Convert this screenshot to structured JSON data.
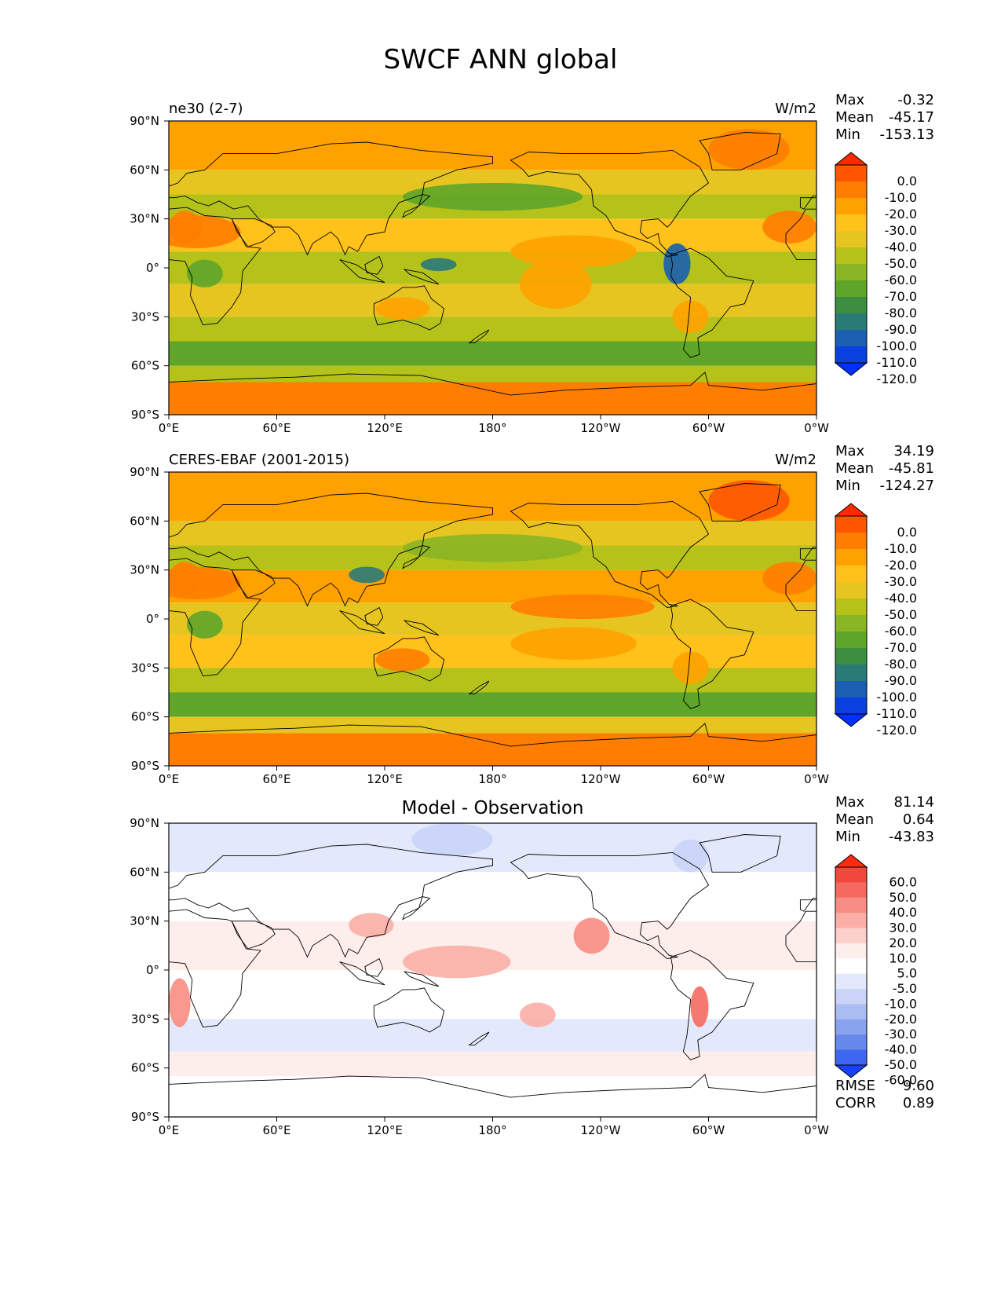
{
  "title": "SWCF ANN global",
  "x_ticks": [
    "0°E",
    "60°E",
    "120°E",
    "180°",
    "120°W",
    "60°W",
    "0°W"
  ],
  "y_ticks": [
    "90°N",
    "60°N",
    "30°N",
    "0°",
    "30°S",
    "60°S",
    "90°S"
  ],
  "stat_labels": {
    "max": "Max",
    "mean": "Mean",
    "min": "Min",
    "rmse": "RMSE",
    "corr": "CORR"
  },
  "panels": [
    {
      "left_title": "ne30 (2-7)",
      "center_title": "",
      "units": "W/m2",
      "stats": {
        "max": "-0.32",
        "mean": "-45.17",
        "min": "-153.13"
      },
      "colorbar": {
        "levels": [
          "0.0",
          "-10.0",
          "-20.0",
          "-30.0",
          "-40.0",
          "-50.0",
          "-60.0",
          "-70.0",
          "-80.0",
          "-90.0",
          "-100.0",
          "-110.0",
          "-120.0"
        ],
        "colors": [
          "#ff2a00",
          "#ff5500",
          "#ff7d00",
          "#ffa200",
          "#ffc21a",
          "#e6c520",
          "#b5c21a",
          "#8ab525",
          "#5ea52a",
          "#3c8d3d",
          "#2a7a78",
          "#1a5fb0",
          "#0a3fe0",
          "#0030ff"
        ]
      }
    },
    {
      "left_title": "CERES-EBAF (2001-2015)",
      "center_title": "",
      "units": "W/m2",
      "stats": {
        "max": "34.19",
        "mean": "-45.81",
        "min": "-124.27"
      },
      "colorbar": {
        "levels": [
          "0.0",
          "-10.0",
          "-20.0",
          "-30.0",
          "-40.0",
          "-50.0",
          "-60.0",
          "-70.0",
          "-80.0",
          "-90.0",
          "-100.0",
          "-110.0",
          "-120.0"
        ],
        "colors": [
          "#ff2a00",
          "#ff5500",
          "#ff7d00",
          "#ffa200",
          "#ffc21a",
          "#e6c520",
          "#b5c21a",
          "#8ab525",
          "#5ea52a",
          "#3c8d3d",
          "#2a7a78",
          "#1a5fb0",
          "#0a3fe0",
          "#0030ff"
        ]
      }
    },
    {
      "left_title": "",
      "center_title": "Model - Observation",
      "units": "",
      "stats": {
        "max": "81.14",
        "mean": "0.64",
        "min": "-43.83",
        "rmse": "9.60",
        "corr": "0.89"
      },
      "colorbar": {
        "levels": [
          "60.0",
          "50.0",
          "40.0",
          "30.0",
          "20.0",
          "10.0",
          "5.0",
          "-5.0",
          "-10.0",
          "-20.0",
          "-30.0",
          "-40.0",
          "-50.0",
          "-60.0"
        ],
        "colors": [
          "#ff2a10",
          "#f0483a",
          "#f46a5e",
          "#f78d83",
          "#faaea6",
          "#fcd0ca",
          "#fdeeeb",
          "#ffffff",
          "#e3e9fb",
          "#c9d4f7",
          "#aabdf3",
          "#8aa3ef",
          "#6688ea",
          "#3f66f0",
          "#1a40ff"
        ]
      }
    }
  ],
  "chart_data": [
    {
      "type": "heatmap",
      "title": "ne30 (2-7)",
      "units": "W/m2",
      "x_range": [
        "0°E",
        "0°W"
      ],
      "y_range": [
        "90°S",
        "90°N"
      ],
      "levels": [
        0,
        -10,
        -20,
        -30,
        -40,
        -50,
        -60,
        -70,
        -80,
        -90,
        -100,
        -110,
        -120
      ],
      "zonal_mean_bands": [
        {
          "lat": [
            60,
            90
          ],
          "value": -25
        },
        {
          "lat": [
            45,
            60
          ],
          "value": -45
        },
        {
          "lat": [
            30,
            45
          ],
          "value": -60
        },
        {
          "lat": [
            10,
            30
          ],
          "value": -35
        },
        {
          "lat": [
            -10,
            10
          ],
          "value": -55
        },
        {
          "lat": [
            -30,
            -10
          ],
          "value": -45
        },
        {
          "lat": [
            -45,
            -30
          ],
          "value": -60
        },
        {
          "lat": [
            -60,
            -45
          ],
          "value": -80
        },
        {
          "lat": [
            -70,
            -60
          ],
          "value": -55
        },
        {
          "lat": [
            -90,
            -70
          ],
          "value": -15
        }
      ],
      "stats": {
        "max": -0.32,
        "mean": -45.17,
        "min": -153.13
      }
    },
    {
      "type": "heatmap",
      "title": "CERES-EBAF (2001-2015)",
      "units": "W/m2",
      "x_range": [
        "0°E",
        "0°W"
      ],
      "y_range": [
        "90°S",
        "90°N"
      ],
      "levels": [
        0,
        -10,
        -20,
        -30,
        -40,
        -50,
        -60,
        -70,
        -80,
        -90,
        -100,
        -110,
        -120
      ],
      "zonal_mean_bands": [
        {
          "lat": [
            60,
            90
          ],
          "value": -25
        },
        {
          "lat": [
            45,
            60
          ],
          "value": -50
        },
        {
          "lat": [
            30,
            45
          ],
          "value": -60
        },
        {
          "lat": [
            10,
            30
          ],
          "value": -30
        },
        {
          "lat": [
            -10,
            10
          ],
          "value": -50
        },
        {
          "lat": [
            -30,
            -10
          ],
          "value": -40
        },
        {
          "lat": [
            -45,
            -30
          ],
          "value": -60
        },
        {
          "lat": [
            -60,
            -45
          ],
          "value": -75
        },
        {
          "lat": [
            -70,
            -60
          ],
          "value": -50
        },
        {
          "lat": [
            -90,
            -70
          ],
          "value": -15
        }
      ],
      "stats": {
        "max": 34.19,
        "mean": -45.81,
        "min": -124.27
      }
    },
    {
      "type": "heatmap",
      "title": "Model - Observation",
      "x_range": [
        "0°E",
        "0°W"
      ],
      "y_range": [
        "90°S",
        "90°N"
      ],
      "levels": [
        60,
        50,
        40,
        30,
        20,
        10,
        5,
        -5,
        -10,
        -20,
        -30,
        -40,
        -50,
        -60
      ],
      "zonal_mean_bands": [
        {
          "lat": [
            60,
            90
          ],
          "value": -8
        },
        {
          "lat": [
            30,
            60
          ],
          "value": 0
        },
        {
          "lat": [
            0,
            30
          ],
          "value": 6
        },
        {
          "lat": [
            -30,
            0
          ],
          "value": 2
        },
        {
          "lat": [
            -50,
            -30
          ],
          "value": -8
        },
        {
          "lat": [
            -65,
            -50
          ],
          "value": 5
        },
        {
          "lat": [
            -90,
            -65
          ],
          "value": 0
        }
      ],
      "stats": {
        "max": 81.14,
        "mean": 0.64,
        "min": -43.83,
        "rmse": 9.6,
        "corr": 0.89
      }
    }
  ]
}
